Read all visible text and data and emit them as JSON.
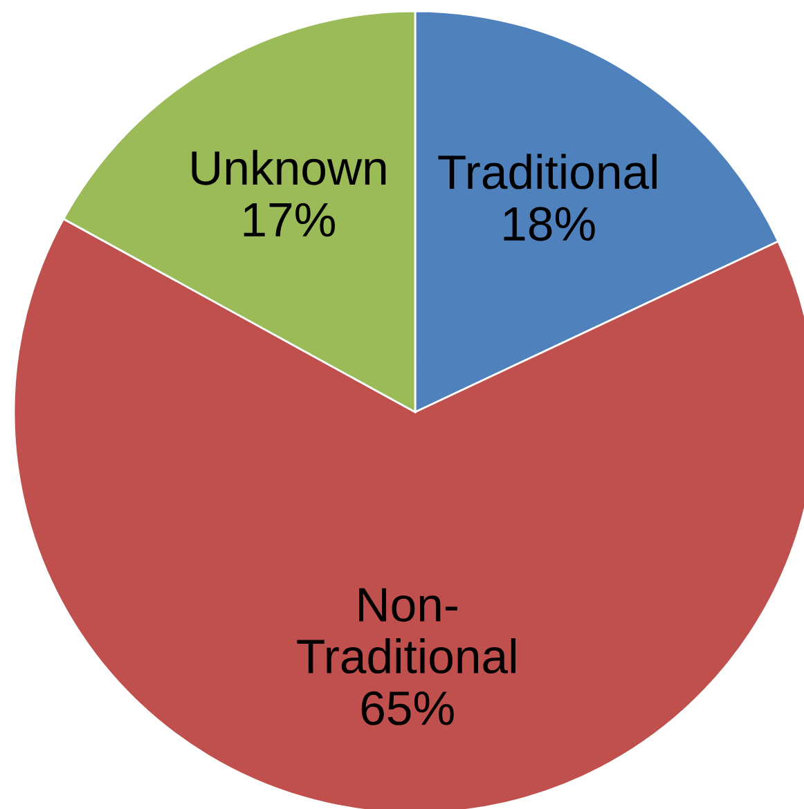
{
  "chart_data": {
    "type": "pie",
    "categories": [
      "Traditional",
      "Non-Traditional",
      "Unknown"
    ],
    "values": [
      18,
      65,
      17
    ],
    "colors": [
      "#4f81bd",
      "#c0504d",
      "#9bbb59"
    ],
    "value_labels": [
      "18%",
      "65%",
      "17%"
    ],
    "legend": false
  }
}
